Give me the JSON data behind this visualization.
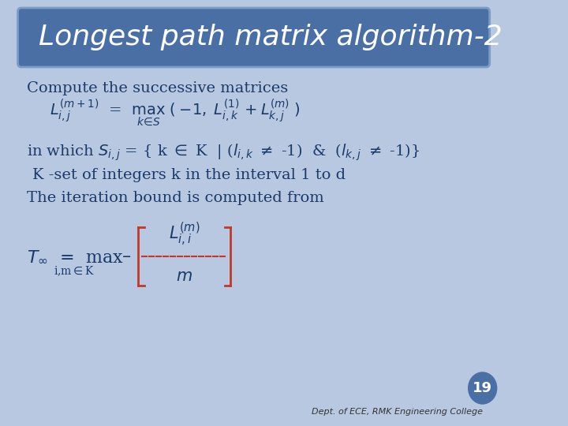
{
  "title": "Longest path matrix algorithm-2",
  "bg_color": "#b8c8e0",
  "title_bg_color": "#4a6fa5",
  "title_text_color": "#ffffff",
  "body_text_color": "#1a3a6a",
  "slide_number": "19",
  "slide_number_bg": "#4a6fa5",
  "footer_text": "Dept. of ECE, RMK Engineering College",
  "content_lines": [
    "Compute the successive matrices"
  ]
}
